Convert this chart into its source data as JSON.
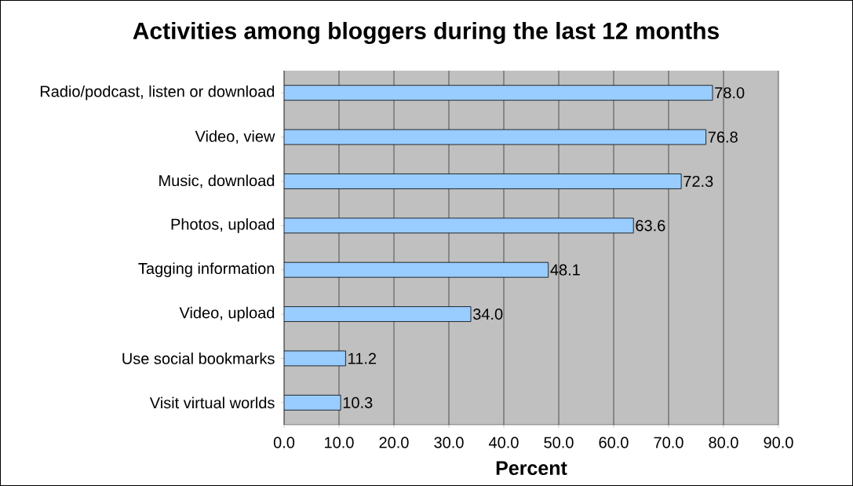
{
  "chart_data": {
    "type": "bar",
    "orientation": "horizontal",
    "title": "Activities among bloggers during the last 12 months",
    "xlabel": "Percent",
    "categories": [
      "Radio/podcast, listen or download",
      "Video, view",
      "Music, download",
      "Photos, upload",
      "Tagging information",
      "Video, upload",
      "Use social bookmarks",
      "Visit virtual worlds"
    ],
    "values": [
      78.0,
      76.8,
      72.3,
      63.6,
      48.1,
      34.0,
      11.2,
      10.3
    ],
    "value_labels": [
      "78.0",
      "76.8",
      "72.3",
      "63.6",
      "48.1",
      "34.0",
      "11.2",
      "10.3"
    ],
    "color": "#99ccff",
    "xlim": [
      0,
      90
    ],
    "xticks": [
      {
        "value": 0,
        "label": "0.0"
      },
      {
        "value": 10,
        "label": "10.0"
      },
      {
        "value": 20,
        "label": "20.0"
      },
      {
        "value": 30,
        "label": "30.0"
      },
      {
        "value": 40,
        "label": "40.0"
      },
      {
        "value": 50,
        "label": "50.0"
      },
      {
        "value": 60,
        "label": "60.0"
      },
      {
        "value": 70,
        "label": "70.0"
      },
      {
        "value": 80,
        "label": "80.0"
      },
      {
        "value": 90,
        "label": "90.0"
      }
    ],
    "grid": "x"
  }
}
